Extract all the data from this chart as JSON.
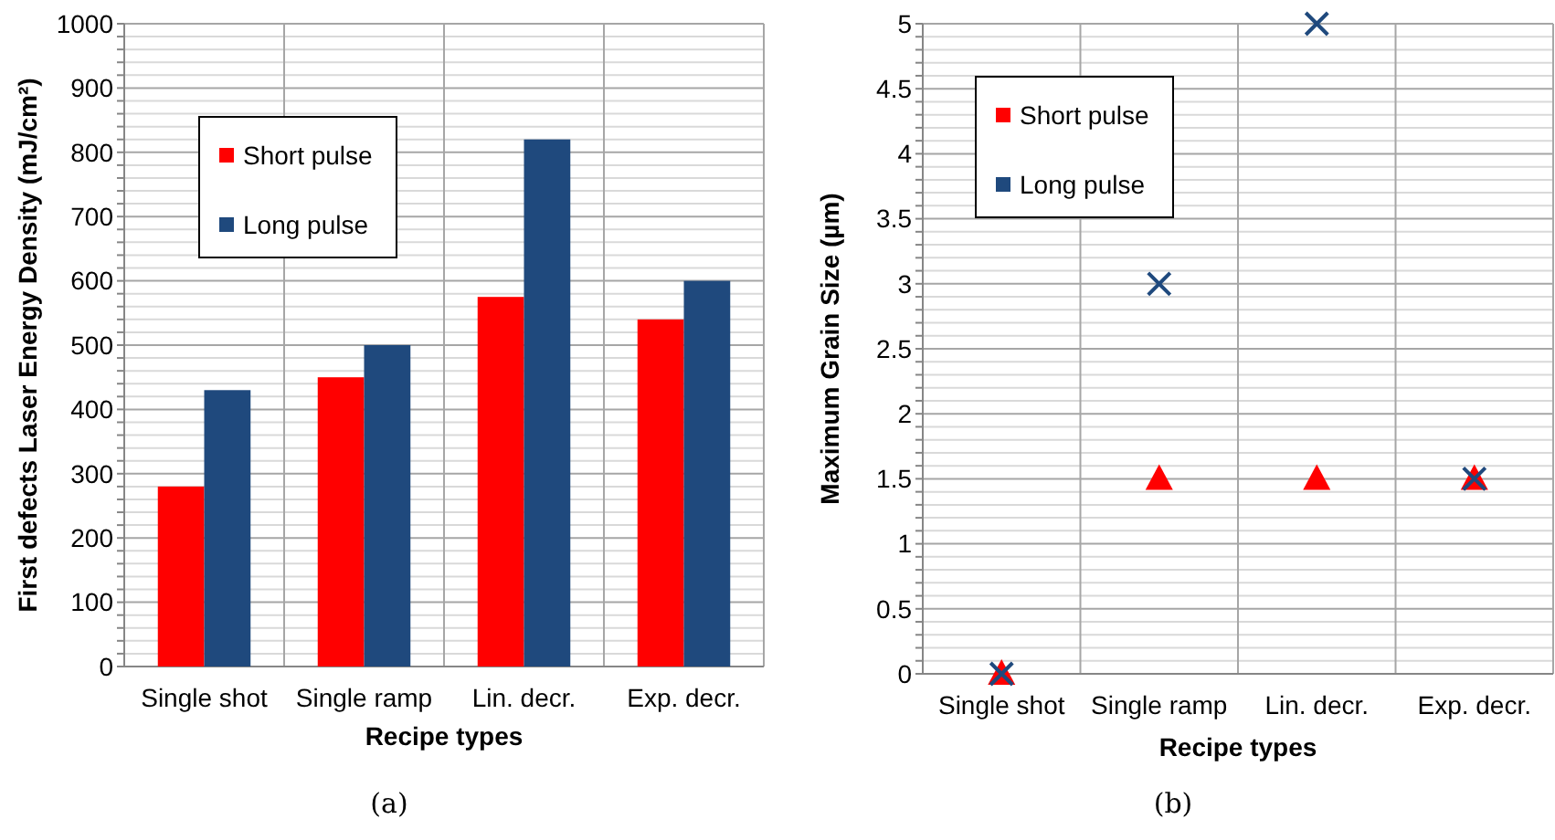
{
  "chart_data": [
    {
      "type": "bar",
      "xlabel": "Recipe types",
      "ylabel": "First defects Laser Energy Density (mJ/cm²)",
      "categories": [
        "Single shot",
        "Single ramp",
        "Lin. decr.",
        "Exp. decr."
      ],
      "series": [
        {
          "name": "Short pulse",
          "color": "#ff0000",
          "values": [
            280,
            450,
            575,
            540
          ]
        },
        {
          "name": "Long pulse",
          "color": "#1f497d",
          "values": [
            430,
            500,
            820,
            600
          ]
        }
      ],
      "ylim": [
        0,
        1000
      ],
      "yticks": [
        0,
        {
          "value": 20,
          "label": null
        },
        {
          "value": 40,
          "label": null
        },
        {
          "value": 60,
          "label": null
        },
        {
          "value": 80,
          "label": null
        },
        100,
        {
          "value": 120,
          "label": null
        },
        {
          "value": 140,
          "label": null
        },
        {
          "value": 160,
          "label": null
        },
        {
          "value": 180,
          "label": null
        },
        200,
        {
          "value": 220,
          "label": null
        },
        {
          "value": 240,
          "label": null
        },
        {
          "value": 260,
          "label": null
        },
        {
          "value": 280,
          "label": null
        },
        300,
        {
          "value": 320,
          "label": null
        },
        {
          "value": 340,
          "label": null
        },
        {
          "value": 360,
          "label": null
        },
        {
          "value": 380,
          "label": null
        },
        400,
        {
          "value": 420,
          "label": null
        },
        {
          "value": 440,
          "label": null
        },
        {
          "value": 460,
          "label": null
        },
        {
          "value": 480,
          "label": null
        },
        500,
        {
          "value": 520,
          "label": null
        },
        {
          "value": 540,
          "label": null
        },
        {
          "value": 560,
          "label": null
        },
        {
          "value": 580,
          "label": null
        },
        600,
        {
          "value": 620,
          "label": null
        },
        {
          "value": 640,
          "label": null
        },
        {
          "value": 660,
          "label": null
        },
        {
          "value": 680,
          "label": null
        },
        700,
        {
          "value": 720,
          "label": null
        },
        {
          "value": 740,
          "label": null
        },
        {
          "value": 760,
          "label": null
        },
        {
          "value": 780,
          "label": null
        },
        800,
        {
          "value": 820,
          "label": null
        },
        {
          "value": 840,
          "label": null
        },
        {
          "value": 860,
          "label": null
        },
        {
          "value": 880,
          "label": null
        },
        900,
        {
          "value": 920,
          "label": null
        },
        {
          "value": 940,
          "label": null
        },
        {
          "value": 960,
          "label": null
        },
        {
          "value": 980,
          "label": null
        },
        1000
      ],
      "grid": true,
      "legend": "top left",
      "annotations": [
        "(a)"
      ]
    },
    {
      "type": "scatter",
      "xlabel": "Recipe types",
      "ylabel": "Maximum Grain Size (µm)",
      "categories": [
        "Single shot",
        "Single ramp",
        "Lin. decr.",
        "Exp. decr."
      ],
      "series": [
        {
          "name": "Short pulse",
          "color": "#ff0000",
          "marker": "triangle",
          "x": [
            "Single shot",
            "Single ramp",
            "Lin. decr.",
            "Exp. decr."
          ],
          "values": [
            0,
            1.5,
            1.5,
            1.5
          ]
        },
        {
          "name": "Long pulse",
          "color": "#1f497d",
          "marker": "cross",
          "x": [
            "Single shot",
            "Single ramp",
            "Lin. decr.",
            "Exp. decr."
          ],
          "values": [
            0,
            3,
            5,
            1.5
          ]
        }
      ],
      "ylim": [
        0,
        5
      ],
      "yticks": [
        0,
        {
          "value": 0.1,
          "label": null
        },
        {
          "value": 0.2,
          "label": null
        },
        {
          "value": 0.3,
          "label": null
        },
        {
          "value": 0.4,
          "label": null
        },
        0.5,
        {
          "value": 0.6,
          "label": null
        },
        {
          "value": 0.7,
          "label": null
        },
        {
          "value": 0.8,
          "label": null
        },
        {
          "value": 0.9,
          "label": null
        },
        1,
        {
          "value": 1.1,
          "label": null
        },
        {
          "value": 1.2,
          "label": null
        },
        {
          "value": 1.3,
          "label": null
        },
        {
          "value": 1.4,
          "label": null
        },
        1.5,
        {
          "value": 1.6,
          "label": null
        },
        {
          "value": 1.7,
          "label": null
        },
        {
          "value": 1.8,
          "label": null
        },
        {
          "value": 1.9,
          "label": null
        },
        2,
        {
          "value": 2.1,
          "label": null
        },
        {
          "value": 2.2,
          "label": null
        },
        {
          "value": 2.3,
          "label": null
        },
        {
          "value": 2.4,
          "label": null
        },
        2.5,
        {
          "value": 2.6,
          "label": null
        },
        {
          "value": 2.7,
          "label": null
        },
        {
          "value": 2.8,
          "label": null
        },
        {
          "value": 2.9,
          "label": null
        },
        3,
        {
          "value": 3.1,
          "label": null
        },
        {
          "value": 3.2,
          "label": null
        },
        {
          "value": 3.3,
          "label": null
        },
        {
          "value": 3.4,
          "label": null
        },
        3.5,
        {
          "value": 3.6,
          "label": null
        },
        {
          "value": 3.7,
          "label": null
        },
        {
          "value": 3.8,
          "label": null
        },
        {
          "value": 3.9,
          "label": null
        },
        4,
        {
          "value": 4.1,
          "label": null
        },
        {
          "value": 4.2,
          "label": null
        },
        {
          "value": 4.3,
          "label": null
        },
        {
          "value": 4.4,
          "label": null
        },
        4.5,
        {
          "value": 4.6,
          "label": null
        },
        {
          "value": 4.7,
          "label": null
        },
        {
          "value": 4.8,
          "label": null
        },
        {
          "value": 4.9,
          "label": null
        },
        5
      ],
      "grid": true,
      "legend": "top left",
      "annotations": [
        "(b)"
      ]
    }
  ]
}
